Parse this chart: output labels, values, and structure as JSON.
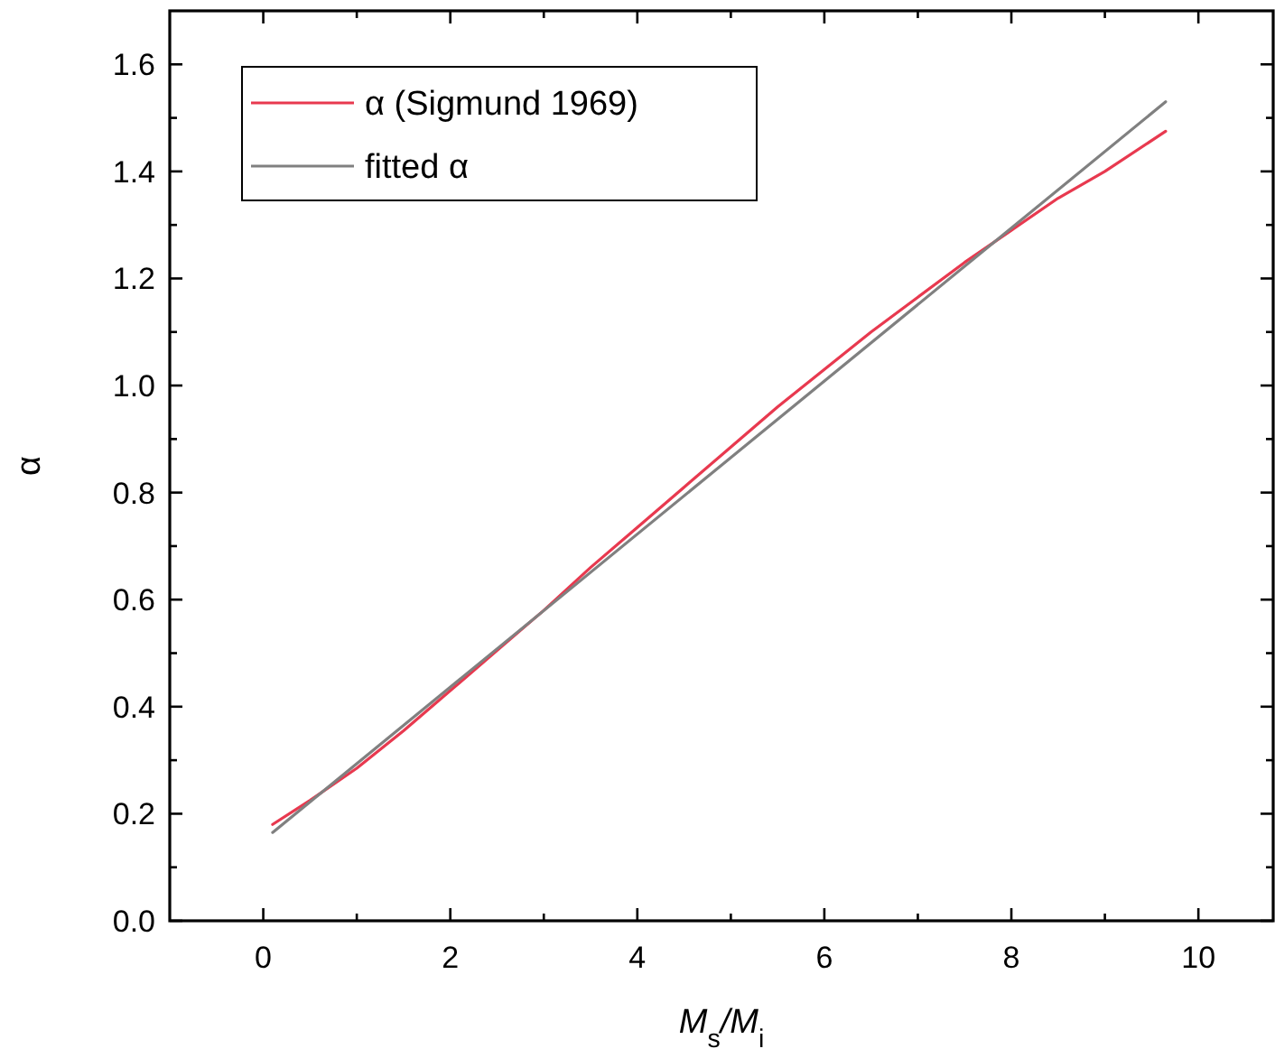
{
  "chart_data": {
    "type": "line",
    "xlabel": "M$_{s}$/M$_{i}$",
    "ylabel": "α",
    "xlim": [
      -1,
      10.8
    ],
    "ylim": [
      0,
      1.7
    ],
    "xticks": [
      0,
      {
        "value": 1,
        "label": null
      },
      2,
      {
        "value": 3,
        "label": null
      },
      4,
      {
        "value": 5,
        "label": null
      },
      6,
      {
        "value": 7,
        "label": null
      },
      8,
      {
        "value": 9,
        "label": null
      },
      10
    ],
    "yticks": [
      "0.0",
      {
        "value": 0.1,
        "label": null
      },
      {
        "value": 0.2,
        "label": "0.2"
      },
      {
        "value": 0.3,
        "label": null
      },
      {
        "value": 0.4,
        "label": "0.4"
      },
      {
        "value": 0.5,
        "label": null
      },
      {
        "value": 0.6,
        "label": "0.6"
      },
      {
        "value": 0.7,
        "label": null
      },
      {
        "value": 0.8,
        "label": "0.8"
      },
      {
        "value": 0.9,
        "label": null
      },
      {
        "value": 1.0,
        "label": "1.0"
      },
      {
        "value": 1.1,
        "label": null
      },
      {
        "value": 1.2,
        "label": "1.2"
      },
      {
        "value": 1.3,
        "label": null
      },
      {
        "value": 1.4,
        "label": "1.4"
      },
      {
        "value": 1.5,
        "label": null
      },
      {
        "value": 1.6,
        "label": "1.6"
      }
    ],
    "grid": false,
    "legend": "top left",
    "marker": "none",
    "line_style": "solid",
    "series": [
      {
        "name": "α (Sigmund 1969)",
        "color": "#e8394f",
        "x": [
          0.1,
          0.5,
          1,
          1.5,
          2,
          2.5,
          3,
          3.5,
          4,
          4.5,
          5,
          5.5,
          6,
          6.5,
          7,
          7.5,
          8,
          8.5,
          9,
          9.65
        ],
        "values": [
          0.18,
          0.225,
          0.285,
          0.355,
          0.43,
          0.505,
          0.58,
          0.66,
          0.735,
          0.81,
          0.885,
          0.96,
          1.03,
          1.1,
          1.165,
          1.23,
          1.29,
          1.35,
          1.4,
          1.475
        ]
      },
      {
        "name": "fitted α",
        "color": "#808080",
        "x": [
          0.1,
          9.65
        ],
        "values": [
          0.165,
          1.53
        ]
      }
    ]
  }
}
